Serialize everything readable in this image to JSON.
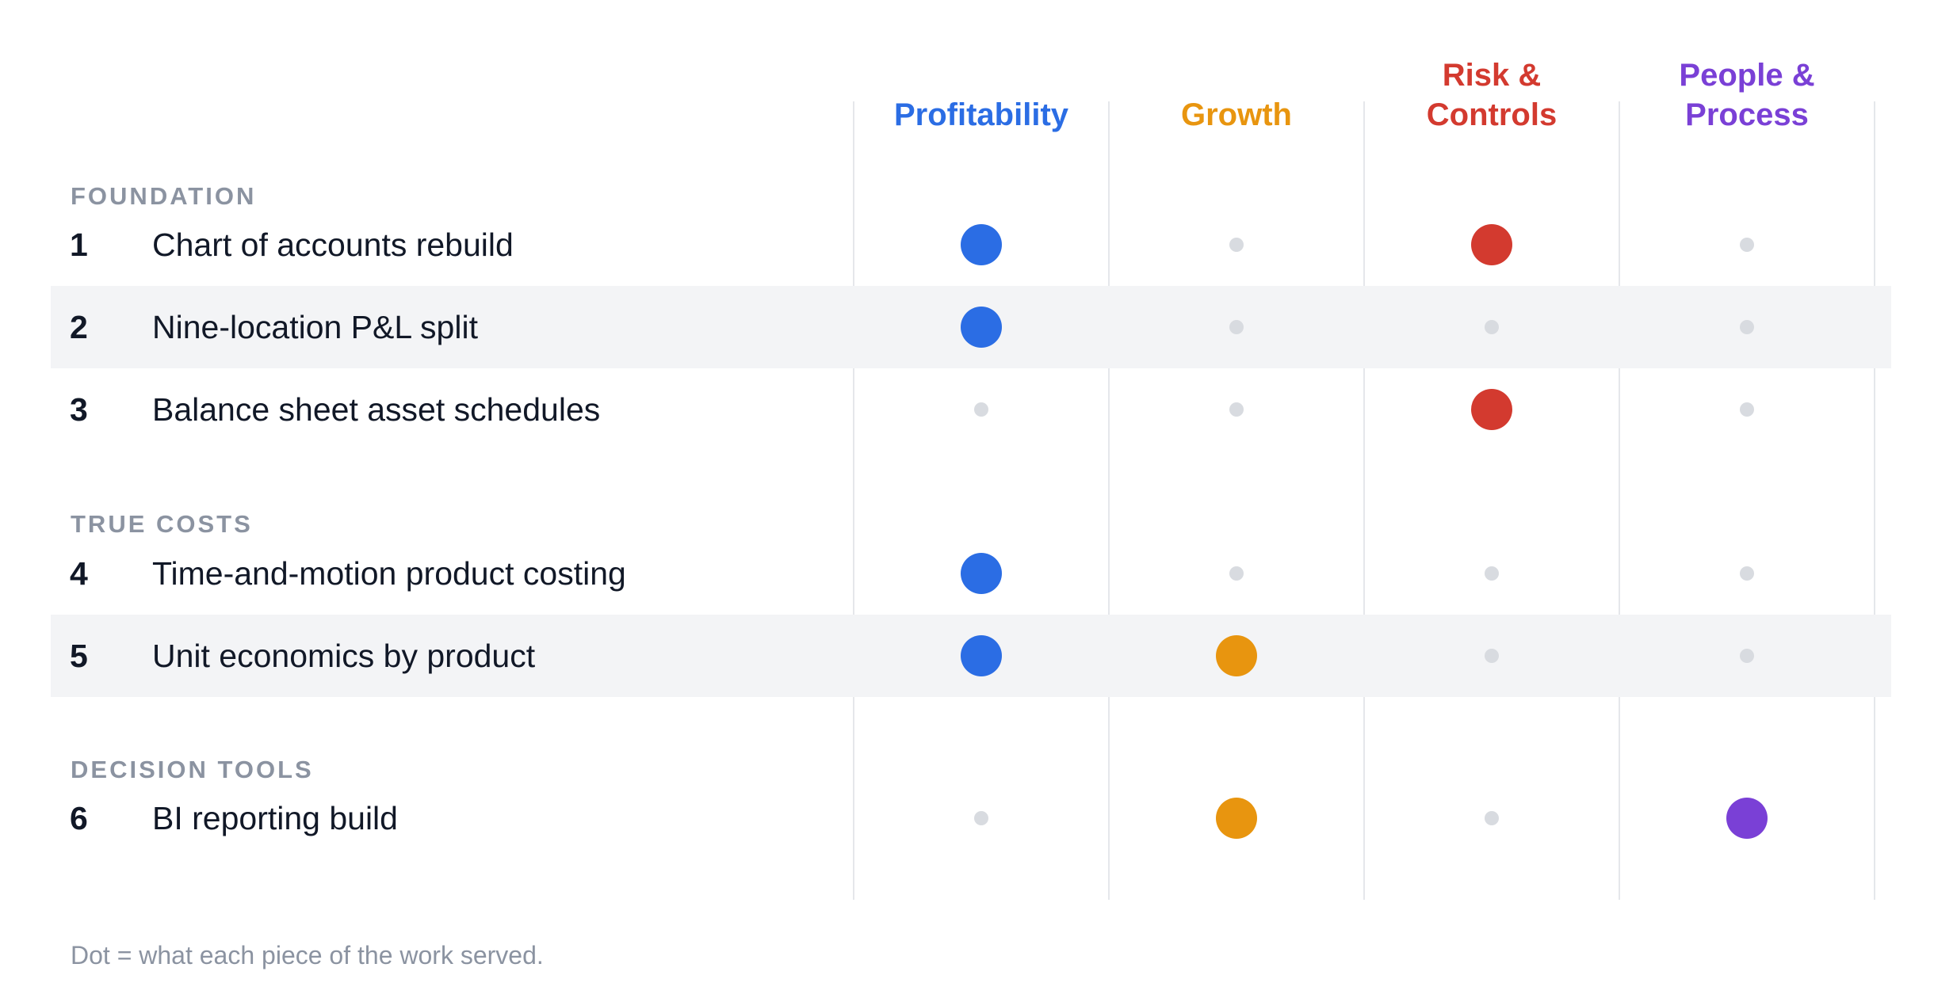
{
  "columns": [
    {
      "label_lines": [
        "Profitability"
      ],
      "color": "#2b6de4"
    },
    {
      "label_lines": [
        "Growth"
      ],
      "color": "#e8950f"
    },
    {
      "label_lines": [
        "Risk &",
        "Controls"
      ],
      "color": "#d33a2f"
    },
    {
      "label_lines": [
        "People &",
        "Process"
      ],
      "color": "#7a40d6"
    }
  ],
  "sections": [
    {
      "title": "FOUNDATION",
      "rows": [
        {
          "num": "1",
          "label": "Chart of accounts rebuild",
          "shaded": false,
          "marks": [
            true,
            false,
            true,
            false
          ]
        },
        {
          "num": "2",
          "label": "Nine-location P&L split",
          "shaded": true,
          "marks": [
            true,
            false,
            false,
            false
          ]
        },
        {
          "num": "3",
          "label": "Balance sheet asset schedules",
          "shaded": false,
          "marks": [
            false,
            false,
            true,
            false
          ]
        }
      ]
    },
    {
      "title": "TRUE COSTS",
      "rows": [
        {
          "num": "4",
          "label": "Time-and-motion product costing",
          "shaded": false,
          "marks": [
            true,
            false,
            false,
            false
          ]
        },
        {
          "num": "5",
          "label": "Unit economics by product",
          "shaded": true,
          "marks": [
            true,
            true,
            false,
            false
          ]
        }
      ]
    },
    {
      "title": "DECISION TOOLS",
      "rows": [
        {
          "num": "6",
          "label": "BI reporting build",
          "shaded": false,
          "marks": [
            false,
            true,
            false,
            true
          ]
        }
      ]
    }
  ],
  "footnote": "Dot = what each piece of the work served."
}
